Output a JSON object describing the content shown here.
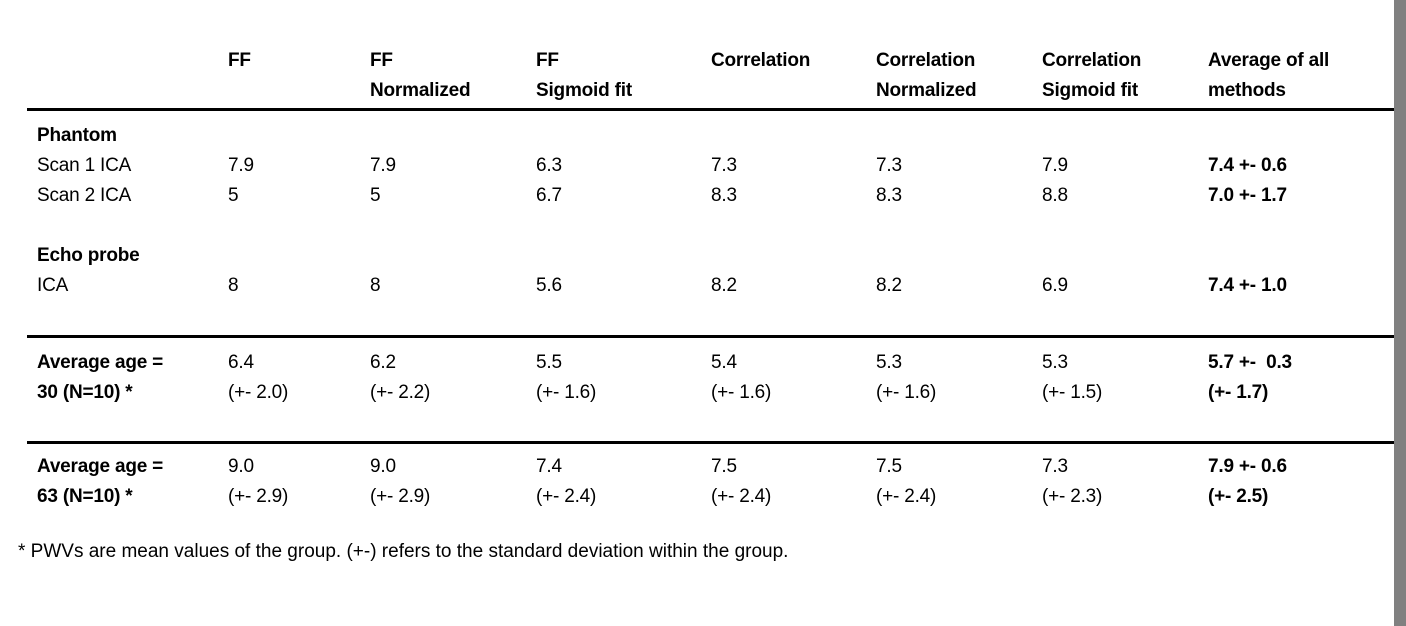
{
  "colors": {
    "background": "#ffffff",
    "text": "#000000",
    "rule": "#000000",
    "edge_bar": "#808080"
  },
  "table": {
    "columns": [
      "FF",
      "FF\nNormalized",
      "FF\nSigmoid fit",
      "Correlation",
      "Correlation\nNormalized",
      "Correlation\nSigmoid fit",
      "Average of all\nmethods"
    ],
    "rows": {
      "phantom_section": "Phantom",
      "scan1": {
        "label": "Scan 1 ICA",
        "ff": "7.9",
        "ff_norm": "7.9",
        "ff_sig": "6.3",
        "corr": "7.3",
        "corr_norm": "7.3",
        "corr_sig": "7.9",
        "avg": "7.4 +- 0.6"
      },
      "scan2": {
        "label": "Scan 2 ICA",
        "ff": "5",
        "ff_norm": "5",
        "ff_sig": "6.7",
        "corr": "8.3",
        "corr_norm": "8.3",
        "corr_sig": "8.8",
        "avg": "7.0 +- 1.7"
      },
      "echo_section": "Echo probe",
      "ica": {
        "label": "ICA",
        "ff": "8",
        "ff_norm": "8",
        "ff_sig": "5.6",
        "corr": "8.2",
        "corr_norm": "8.2",
        "corr_sig": "6.9",
        "avg": "7.4 +- 1.0"
      },
      "age30": {
        "label": "Average age =\n30 (N=10) *",
        "ff": "6.4\n(+- 2.0)",
        "ff_norm": "6.2\n(+- 2.2)",
        "ff_sig": "5.5\n(+- 1.6)",
        "corr": "5.4\n(+- 1.6)",
        "corr_norm": "5.3\n(+- 1.6)",
        "corr_sig": "5.3\n(+- 1.5)",
        "avg": "5.7 +-  0.3\n(+- 1.7)"
      },
      "age63": {
        "label": "Average age =\n63 (N=10) *",
        "ff": "9.0\n(+- 2.9)",
        "ff_norm": "9.0\n(+- 2.9)",
        "ff_sig": "7.4\n(+- 2.4)",
        "corr": "7.5\n(+- 2.4)",
        "corr_norm": "7.5\n(+- 2.4)",
        "corr_sig": "7.3\n(+- 2.3)",
        "avg": "7.9 +- 0.6\n(+- 2.5)"
      }
    }
  },
  "footnote": "* PWVs are mean values of the group. (+-) refers to the standard deviation within the group."
}
